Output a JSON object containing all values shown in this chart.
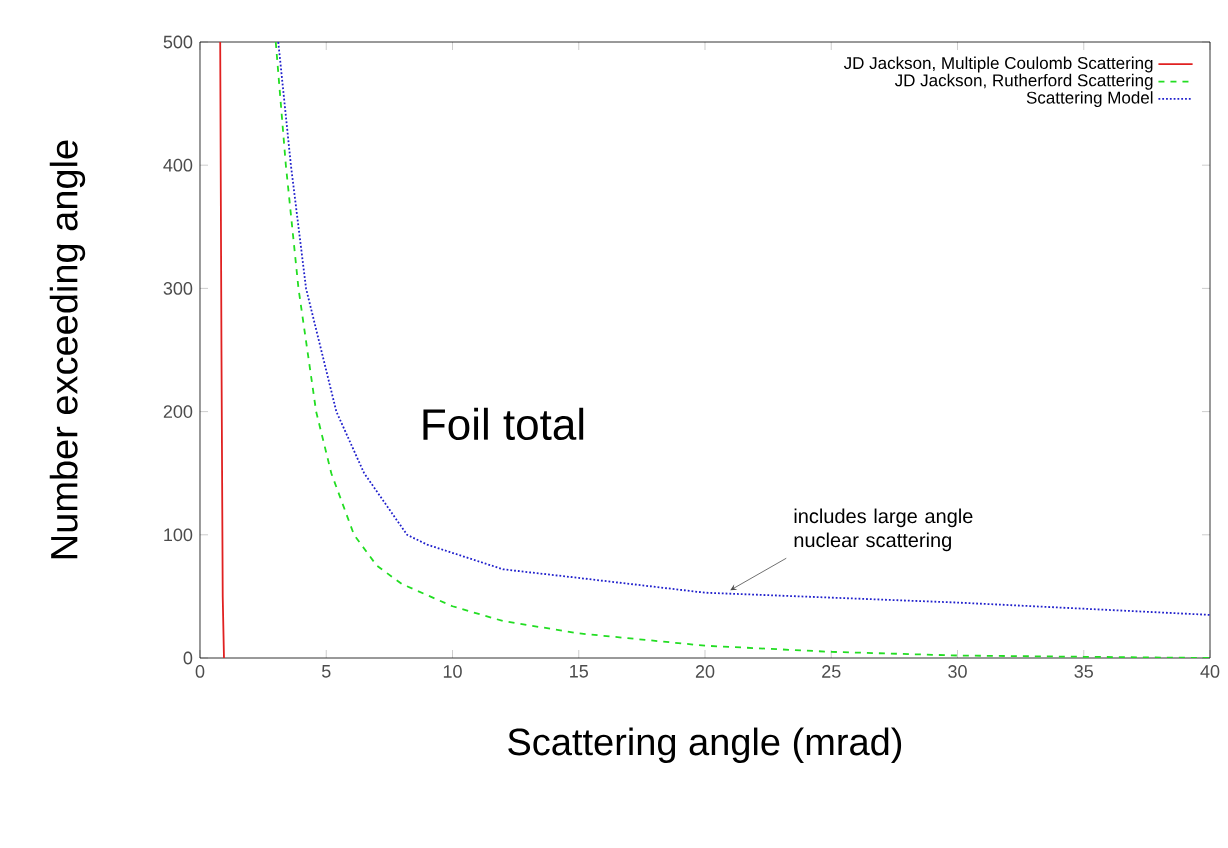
{
  "chart_data": {
    "type": "line",
    "xlabel": "Scattering angle (mrad)",
    "ylabel": "Number exceeding angle",
    "xlim": [
      0,
      40
    ],
    "ylim": [
      0,
      500
    ],
    "xticks": [
      0,
      5,
      10,
      15,
      20,
      25,
      30,
      35,
      40
    ],
    "yticks": [
      0,
      100,
      200,
      300,
      400,
      500
    ],
    "legend": "top right",
    "grid": false,
    "marker": "none",
    "series": [
      {
        "name": "JD Jackson, Multiple Coulomb Scattering",
        "color": "#e02020",
        "line_style": "solid",
        "x": [
          0.8,
          0.85,
          0.9,
          0.95
        ],
        "values": [
          500,
          250,
          50,
          0
        ]
      },
      {
        "name": "JD Jackson, Rutherford Scattering",
        "color": "#22dd22",
        "line_style": "dashed",
        "x": [
          3,
          3.4,
          3.9,
          4.6,
          5.2,
          6.1,
          7,
          8,
          10,
          12,
          15,
          20,
          25,
          30,
          35,
          40
        ],
        "values": [
          500,
          400,
          300,
          200,
          150,
          100,
          75,
          60,
          42,
          30,
          20,
          10,
          5,
          2,
          1,
          0
        ]
      },
      {
        "name": "Scattering Model",
        "color": "#2020cc",
        "line_style": "dotted",
        "x": [
          3.1,
          3.6,
          4.2,
          5.4,
          6.5,
          8.2,
          9,
          12,
          15,
          20,
          25,
          30,
          35,
          40
        ],
        "values": [
          500,
          400,
          300,
          200,
          150,
          100,
          92,
          72,
          65,
          53,
          49,
          45,
          40,
          35
        ]
      }
    ],
    "annotations": [
      "Foil total",
      {
        "text": "includes large angle nuclear scattering",
        "x": 21,
        "y": 55
      }
    ]
  }
}
